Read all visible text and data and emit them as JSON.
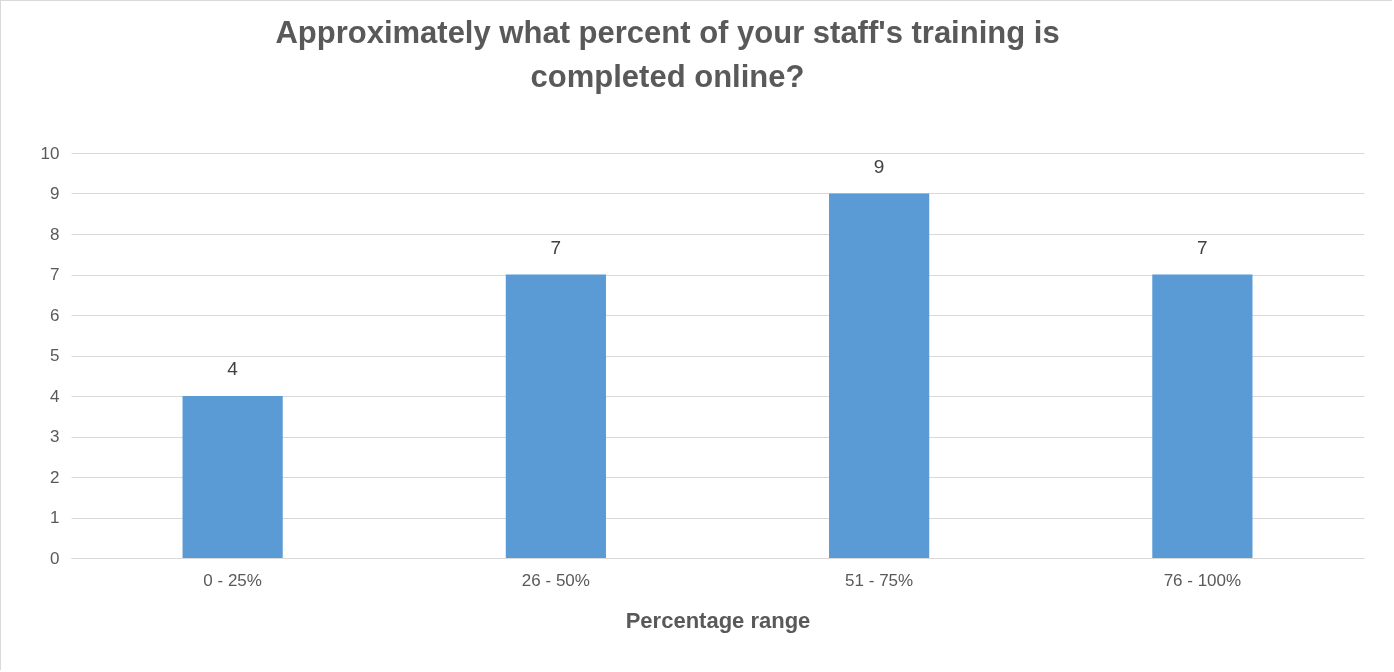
{
  "chart_data": {
    "type": "bar",
    "title": "Approximately what percent of your staff's training is completed online?",
    "xlabel": "Percentage range",
    "categories": [
      "0 - 25%",
      "26 - 50%",
      "51 - 75%",
      "76 - 100%"
    ],
    "values": [
      4,
      7,
      9,
      7
    ],
    "color": "#5b9bd5",
    "ylim": [
      0,
      10
    ],
    "yticks": [
      0,
      1,
      2,
      3,
      4,
      5,
      6,
      7,
      8,
      9,
      10
    ],
    "grid": "y",
    "data_labels": true
  }
}
